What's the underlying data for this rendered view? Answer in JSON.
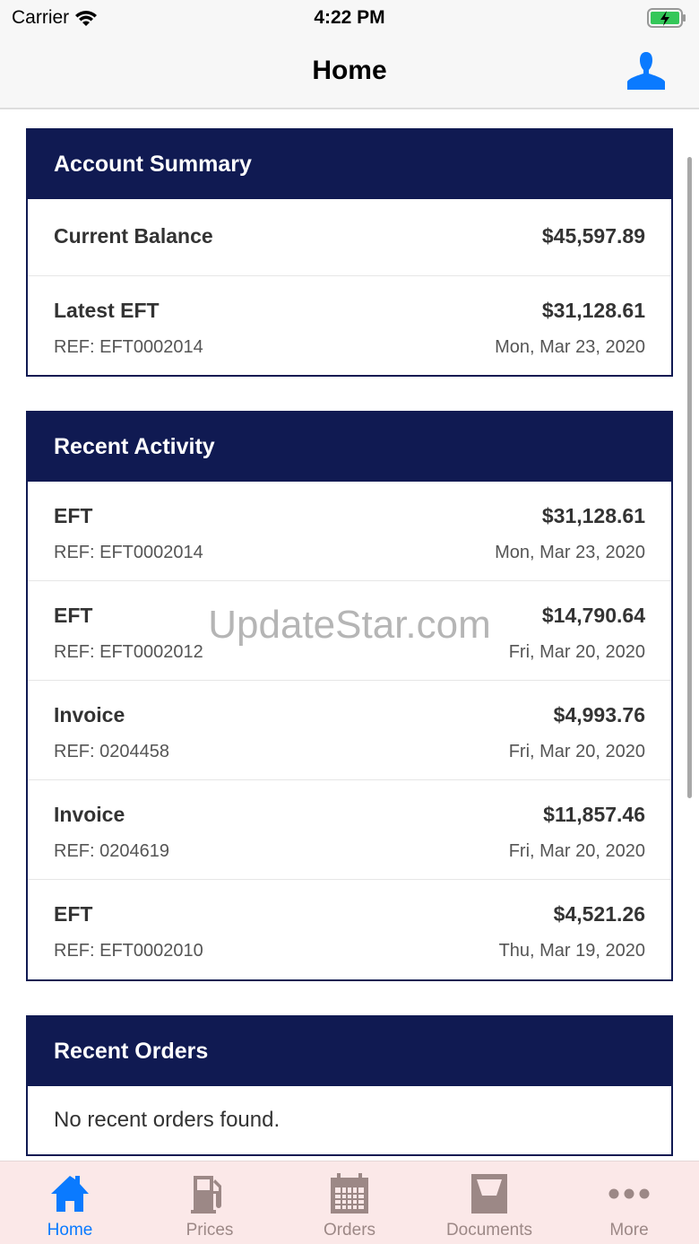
{
  "status_bar": {
    "carrier": "Carrier",
    "time": "4:22 PM"
  },
  "nav": {
    "title": "Home",
    "profile_icon": "person-icon"
  },
  "account_summary": {
    "title": "Account Summary",
    "current_balance_label": "Current Balance",
    "current_balance": "$45,597.89",
    "latest_eft_label": "Latest EFT",
    "latest_eft_amount": "$31,128.61",
    "latest_eft_ref": "REF: EFT0002014",
    "latest_eft_date": "Mon, Mar 23, 2020"
  },
  "recent_activity": {
    "title": "Recent Activity",
    "items": [
      {
        "type": "EFT",
        "amount": "$31,128.61",
        "ref": "REF: EFT0002014",
        "date": "Mon, Mar 23, 2020"
      },
      {
        "type": "EFT",
        "amount": "$14,790.64",
        "ref": "REF: EFT0002012",
        "date": "Fri, Mar 20, 2020"
      },
      {
        "type": "Invoice",
        "amount": "$4,993.76",
        "ref": "REF: 0204458",
        "date": "Fri, Mar 20, 2020"
      },
      {
        "type": "Invoice",
        "amount": "$11,857.46",
        "ref": "REF: 0204619",
        "date": "Fri, Mar 20, 2020"
      },
      {
        "type": "EFT",
        "amount": "$4,521.26",
        "ref": "REF: EFT0002010",
        "date": "Thu, Mar 19, 2020"
      }
    ]
  },
  "recent_orders": {
    "title": "Recent Orders",
    "empty": "No recent orders found."
  },
  "watermark": "UpdateStar.com",
  "tabs": [
    {
      "label": "Home",
      "icon": "home-icon",
      "active": true
    },
    {
      "label": "Prices",
      "icon": "fuel-pump-icon"
    },
    {
      "label": "Orders",
      "icon": "calendar-icon"
    },
    {
      "label": "Documents",
      "icon": "inbox-tray-icon"
    },
    {
      "label": "More",
      "icon": "more-dots-icon"
    }
  ],
  "colors": {
    "header": "#101a52",
    "accent": "#0a7aff",
    "tab_inactive": "#9c8886",
    "tabbar_bg": "#fbe8e8"
  }
}
